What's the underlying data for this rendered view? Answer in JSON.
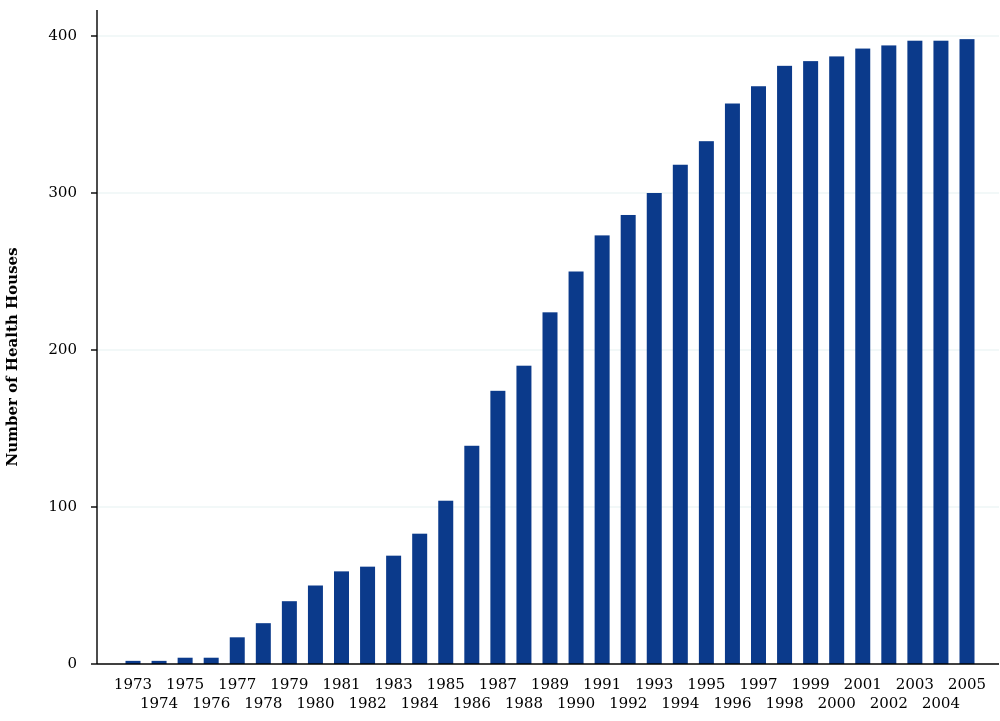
{
  "chart_data": {
    "type": "bar",
    "title": "",
    "xlabel": "",
    "ylabel": "Number of Health Houses",
    "ylim": [
      0,
      400
    ],
    "yticks": [
      0,
      100,
      200,
      300,
      400
    ],
    "grid": true,
    "legend": "none",
    "bar_color": "#0b3a8b",
    "categories": [
      "1973",
      "1974",
      "1975",
      "1976",
      "1977",
      "1978",
      "1979",
      "1980",
      "1981",
      "1982",
      "1983",
      "1984",
      "1985",
      "1986",
      "1987",
      "1988",
      "1989",
      "1990",
      "1991",
      "1992",
      "1993",
      "1994",
      "1995",
      "1996",
      "1997",
      "1998",
      "1999",
      "2000",
      "2001",
      "2002",
      "2003",
      "2004",
      "2005"
    ],
    "values": [
      2,
      2,
      4,
      4,
      17,
      26,
      40,
      50,
      59,
      62,
      69,
      83,
      104,
      139,
      174,
      190,
      224,
      250,
      273,
      286,
      300,
      318,
      333,
      357,
      368,
      381,
      384,
      387,
      392,
      394,
      397,
      397,
      398
    ]
  }
}
